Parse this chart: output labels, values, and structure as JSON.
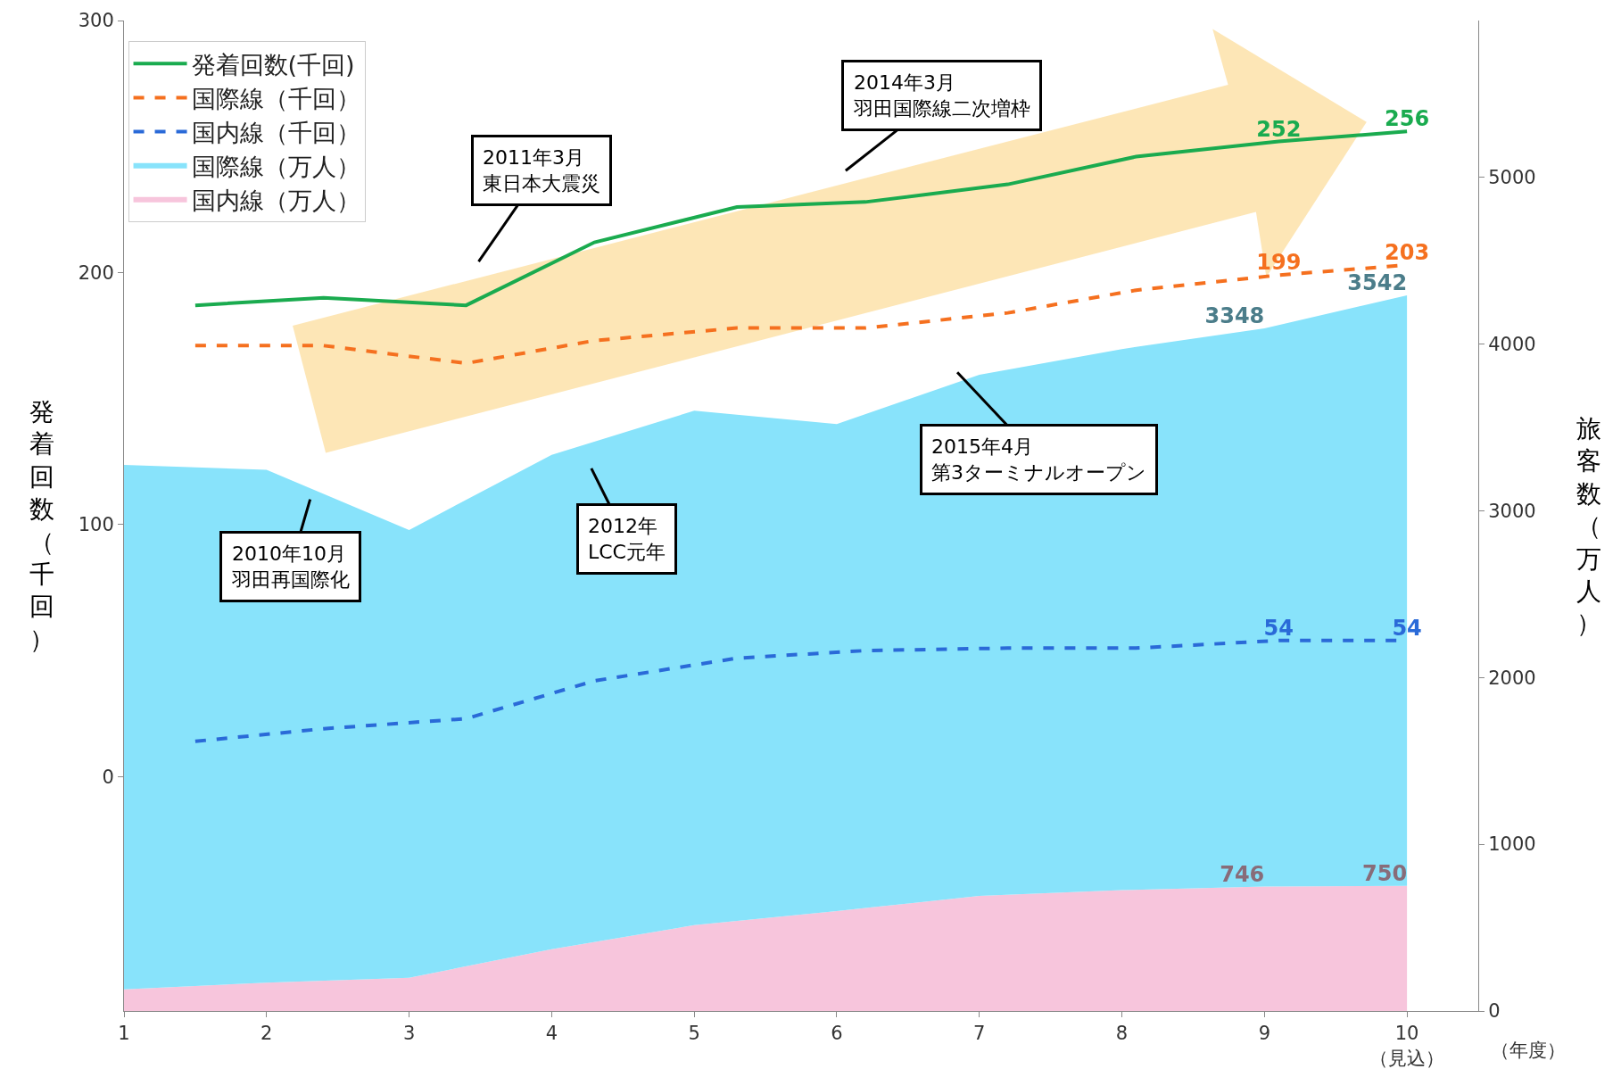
{
  "chart_data": {
    "type": "line",
    "xlim": [
      1,
      10.5
    ],
    "xticks": [
      1,
      2,
      3,
      4,
      5,
      6,
      7,
      8,
      9,
      {
        "value": 10,
        "label": "10\n（見込）"
      }
    ],
    "xlabel": "（年度）",
    "ylabel": "発着回数（千回）",
    "y2label": "旅客数（万人）",
    "ylim": [
      -93,
      300
    ],
    "yticks": [
      0,
      100,
      200,
      300
    ],
    "y2lim": [
      0,
      5940
    ],
    "y2ticks": [
      0,
      1000,
      2000,
      3000,
      4000,
      5000
    ],
    "legend": "top left",
    "stacked": true,
    "series": [
      {
        "name": "発着回数(千回)",
        "color": "#1aab4f",
        "line_style": "solid",
        "x": [
          1.5,
          2.4,
          3.4,
          4.3,
          5.3,
          6.2,
          7.2,
          8.1,
          9.1,
          10
        ],
        "values": [
          187,
          190,
          187,
          212,
          226,
          228,
          235,
          246,
          252,
          256
        ],
        "value_labels": [
          null,
          null,
          null,
          null,
          null,
          null,
          null,
          null,
          "252",
          "256"
        ]
      },
      {
        "name": "国際線（千回）",
        "color": "#f5701f",
        "line_style": "dashed",
        "x": [
          1.5,
          2.4,
          3.4,
          4.3,
          5.3,
          6.2,
          7.2,
          8.1,
          9.1,
          10
        ],
        "values": [
          171,
          171,
          164,
          173,
          178,
          178,
          184,
          193,
          199,
          203
        ],
        "value_labels": [
          null,
          null,
          null,
          null,
          null,
          null,
          null,
          null,
          "199",
          "203"
        ]
      },
      {
        "name": "国内線（千回）",
        "color": "#2a6ad8",
        "line_style": "dashed",
        "x": [
          1.5,
          2.4,
          3.4,
          4.3,
          5.3,
          6.2,
          7.2,
          8.1,
          9.1,
          10
        ],
        "values": [
          14,
          19,
          23,
          38,
          47,
          50,
          51,
          51,
          54,
          54
        ],
        "value_labels": [
          null,
          null,
          null,
          null,
          null,
          null,
          null,
          null,
          "54",
          "54"
        ]
      },
      {
        "name": "国内線（万人）",
        "type": "area",
        "axis": "y2",
        "color": "#f7c5dc",
        "x": [
          1,
          2,
          3,
          4,
          5,
          6,
          7,
          8,
          9,
          10
        ],
        "values": [
          130,
          170,
          200,
          370,
          515,
          600,
          690,
          725,
          746,
          750
        ],
        "value_labels": [
          null,
          null,
          null,
          null,
          null,
          null,
          null,
          null,
          "746",
          "750"
        ]
      },
      {
        "name": "国際線（万人）",
        "type": "area",
        "axis": "y2",
        "color": "#88e3fb",
        "x": [
          1,
          2,
          3,
          4,
          5,
          6,
          7,
          8,
          9,
          10
        ],
        "values": [
          3145,
          3075,
          2685,
          2965,
          3085,
          2920,
          3125,
          3245,
          3348,
          3542
        ],
        "value_labels": [
          null,
          null,
          null,
          null,
          null,
          null,
          null,
          null,
          "3348",
          "3542"
        ]
      }
    ],
    "annotations": [
      "2010年10月羽田再国際化",
      "2011年3月東日本大震災",
      "2012年LCC元年",
      "2014年3月羽田国際線二次増枠",
      "2015年4月第3ターミナルオープン"
    ]
  }
}
